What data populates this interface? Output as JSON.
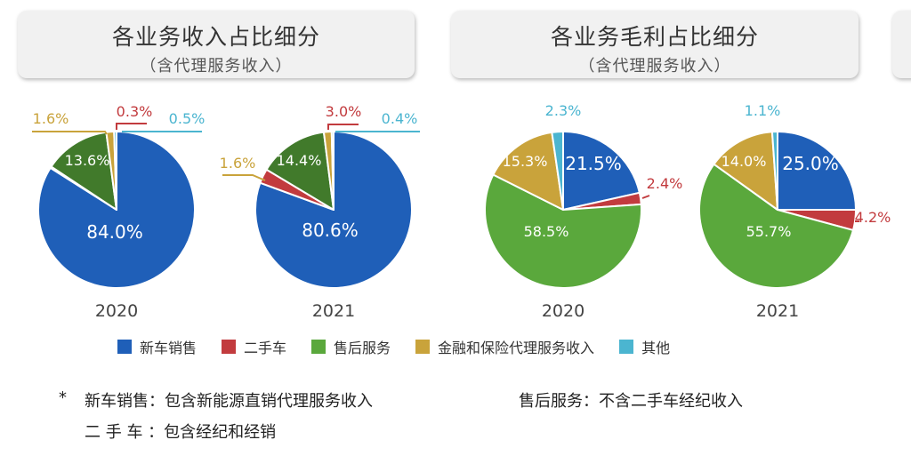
{
  "panels": [
    {
      "title": "各业务收入占比细分",
      "subtitle": "（含代理服务收入）"
    },
    {
      "title": "各业务毛利占比细分",
      "subtitle": "（含代理服务收入）"
    }
  ],
  "colors": {
    "新车销售": "#1f5fb8",
    "二手车": "#c23b3e",
    "售后服务": "#5aa83c",
    "金融和保险代理服务收入": "#c9a33b",
    "其他": "#4bb5d0",
    "收入_售后服务": "#417a2b"
  },
  "legend": [
    "新车销售",
    "二手车",
    "售后服务",
    "金融和保险代理服务收入",
    "其他"
  ],
  "notes": {
    "star": "*",
    "line1_label": "新车销售：包含新能源直销代理服务收入",
    "line1_right": "售后服务：不含二手车经纪收入",
    "line2_label": "二 手 车 ：包含经纪和经销"
  },
  "chart_data": [
    {
      "type": "pie",
      "title": "各业务收入占比细分",
      "subtitle": "（含代理服务收入）",
      "year": "2020",
      "slices": [
        {
          "category": "新车销售",
          "value": 84.0,
          "label": "84.0%"
        },
        {
          "category": "二手车",
          "value": 0.3,
          "label": "0.3%"
        },
        {
          "category": "售后服务",
          "value": 13.6,
          "label": "13.6%"
        },
        {
          "category": "金融和保险代理服务收入",
          "value": 1.6,
          "label": "1.6%"
        },
        {
          "category": "其他",
          "value": 0.5,
          "label": "0.5%"
        }
      ]
    },
    {
      "type": "pie",
      "title": "各业务收入占比细分",
      "subtitle": "（含代理服务收入）",
      "year": "2021",
      "slices": [
        {
          "category": "新车销售",
          "value": 80.6,
          "label": "80.6%"
        },
        {
          "category": "二手车",
          "value": 3.0,
          "label": "3.0%"
        },
        {
          "category": "售后服务",
          "value": 14.4,
          "label": "14.4%"
        },
        {
          "category": "金融和保险代理服务收入",
          "value": 1.6,
          "label": "1.6%"
        },
        {
          "category": "其他",
          "value": 0.4,
          "label": "0.4%"
        }
      ]
    },
    {
      "type": "pie",
      "title": "各业务毛利占比细分",
      "subtitle": "（含代理服务收入）",
      "year": "2020",
      "slices": [
        {
          "category": "新车销售",
          "value": 21.5,
          "label": "21.5%"
        },
        {
          "category": "二手车",
          "value": 2.4,
          "label": "2.4%"
        },
        {
          "category": "售后服务",
          "value": 58.5,
          "label": "58.5%"
        },
        {
          "category": "金融和保险代理服务收入",
          "value": 15.3,
          "label": "15.3%"
        },
        {
          "category": "其他",
          "value": 2.3,
          "label": "2.3%"
        }
      ]
    },
    {
      "type": "pie",
      "title": "各业务毛利占比细分",
      "subtitle": "（含代理服务收入）",
      "year": "2021",
      "slices": [
        {
          "category": "新车销售",
          "value": 25.0,
          "label": "25.0%"
        },
        {
          "category": "二手车",
          "value": 4.2,
          "label": "4.2%"
        },
        {
          "category": "售后服务",
          "value": 55.7,
          "label": "55.7%"
        },
        {
          "category": "金融和保险代理服务收入",
          "value": 14.0,
          "label": "14.0%"
        },
        {
          "category": "其他",
          "value": 1.1,
          "label": "1.1%"
        }
      ]
    }
  ]
}
